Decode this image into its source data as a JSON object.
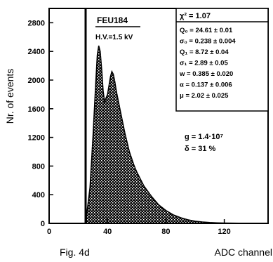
{
  "chart_data": {
    "type": "area",
    "title": "",
    "xlabel": "ADC channel",
    "ylabel": "Nr. of events",
    "figure_label": "Fig. 4d",
    "xlim": [
      0,
      150
    ],
    "ylim": [
      0,
      3000
    ],
    "x_ticks": [
      0,
      40,
      80,
      120
    ],
    "y_ticks": [
      0,
      400,
      800,
      1200,
      1600,
      2000,
      2400,
      2800
    ],
    "pedestal_channel": 25,
    "grid": false,
    "series": [
      {
        "name": "",
        "x": [
          25,
          28,
          30,
          32,
          33,
          34,
          35,
          36,
          37,
          38,
          40,
          42,
          43,
          44,
          45,
          46,
          48,
          50,
          52,
          55,
          58,
          60,
          65,
          70,
          75,
          80,
          85,
          90,
          95,
          100,
          105,
          110,
          115,
          120,
          130,
          140,
          150
        ],
        "y": [
          0,
          500,
          1200,
          2000,
          2350,
          2480,
          2400,
          2150,
          1850,
          1700,
          1800,
          2050,
          2120,
          2080,
          1980,
          1850,
          1650,
          1450,
          1250,
          1000,
          820,
          720,
          520,
          380,
          260,
          180,
          120,
          80,
          50,
          30,
          20,
          12,
          8,
          5,
          2,
          1,
          0
        ]
      }
    ],
    "annotations": {
      "tube_label": "FEU184",
      "hv_label": "H.V.=1.5 kV",
      "chi2": "χ² = 1.07",
      "fit_params": [
        "Q₀ = 24.61 ± 0.01",
        "σ₀ = 0.238 ± 0.004",
        "Q₁ = 8.72 ± 0.04",
        "σ₁ = 2.89 ± 0.05",
        "w = 0.385 ± 0.020",
        "α = 0.137 ± 0.006",
        "μ = 2.02 ± 0.025"
      ],
      "gain": "g = 1.4·10⁷",
      "delta": "δ = 31 %"
    }
  }
}
